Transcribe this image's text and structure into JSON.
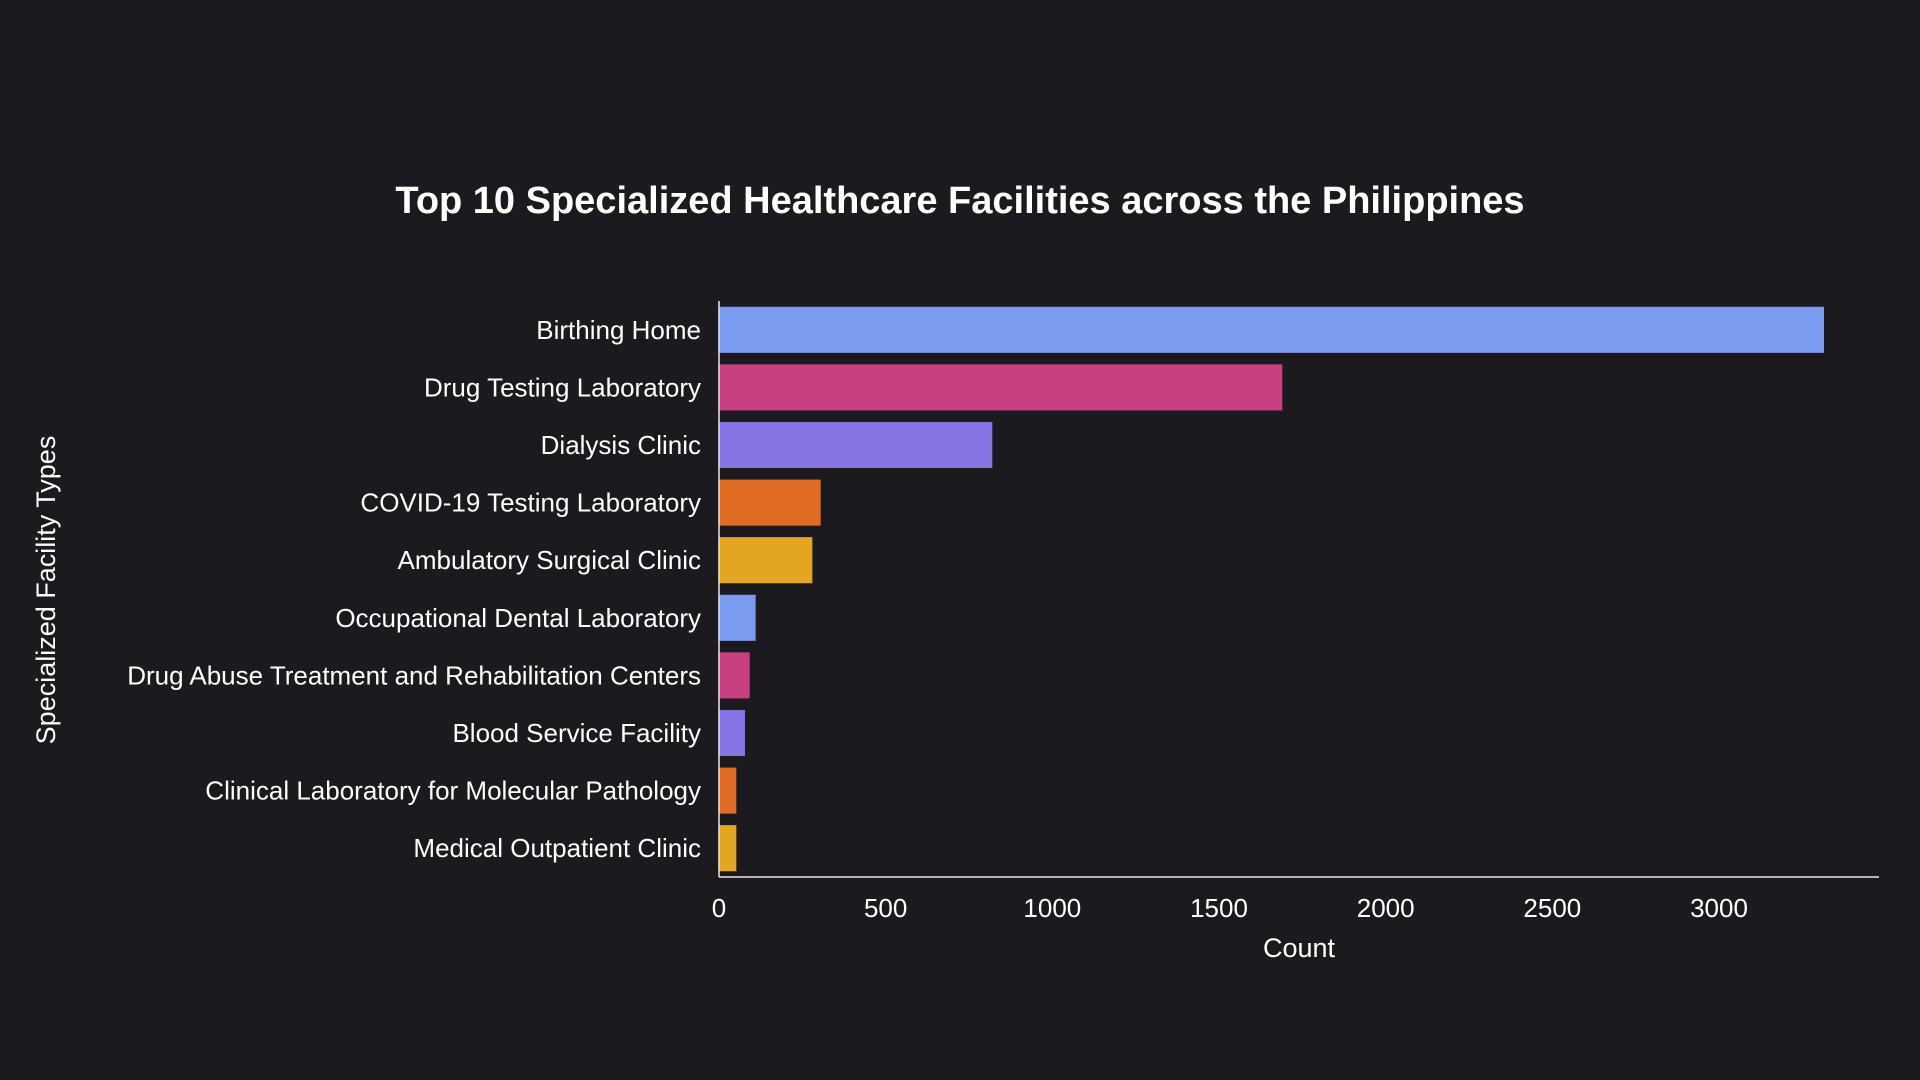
{
  "chart_data": {
    "type": "bar",
    "orientation": "horizontal",
    "title": "Top 10 Specialized Healthcare Facilities across the Philippines",
    "xlabel": "Count",
    "ylabel": "Specialized Facility Types",
    "xlim": [
      0,
      3480
    ],
    "xticks": [
      0,
      500,
      1000,
      1500,
      2000,
      2500,
      3000
    ],
    "grid": false,
    "legend": "none",
    "categories": [
      "Birthing Home",
      "Drug Testing Laboratory",
      "Dialysis Clinic",
      "COVID-19 Testing Laboratory",
      "Ambulatory Surgical Clinic",
      "Occupational Dental Laboratory",
      "Drug Abuse Treatment and Rehabilitation Centers",
      "Blood Service Facility",
      "Clinical Laboratory for Molecular Pathology",
      "Medical Outpatient Clinic"
    ],
    "values": [
      3315,
      1690,
      820,
      305,
      280,
      110,
      92,
      78,
      52,
      52
    ],
    "colors": [
      "#7b9bf0",
      "#c84082",
      "#8574e2",
      "#e06c24",
      "#e2a623",
      "#7b9bf0",
      "#c84082",
      "#8574e2",
      "#e06c24",
      "#e2a623"
    ]
  },
  "colors": {
    "background": "#1c1a1e",
    "text": "#ffffff",
    "axis": "#e8e8e8"
  }
}
